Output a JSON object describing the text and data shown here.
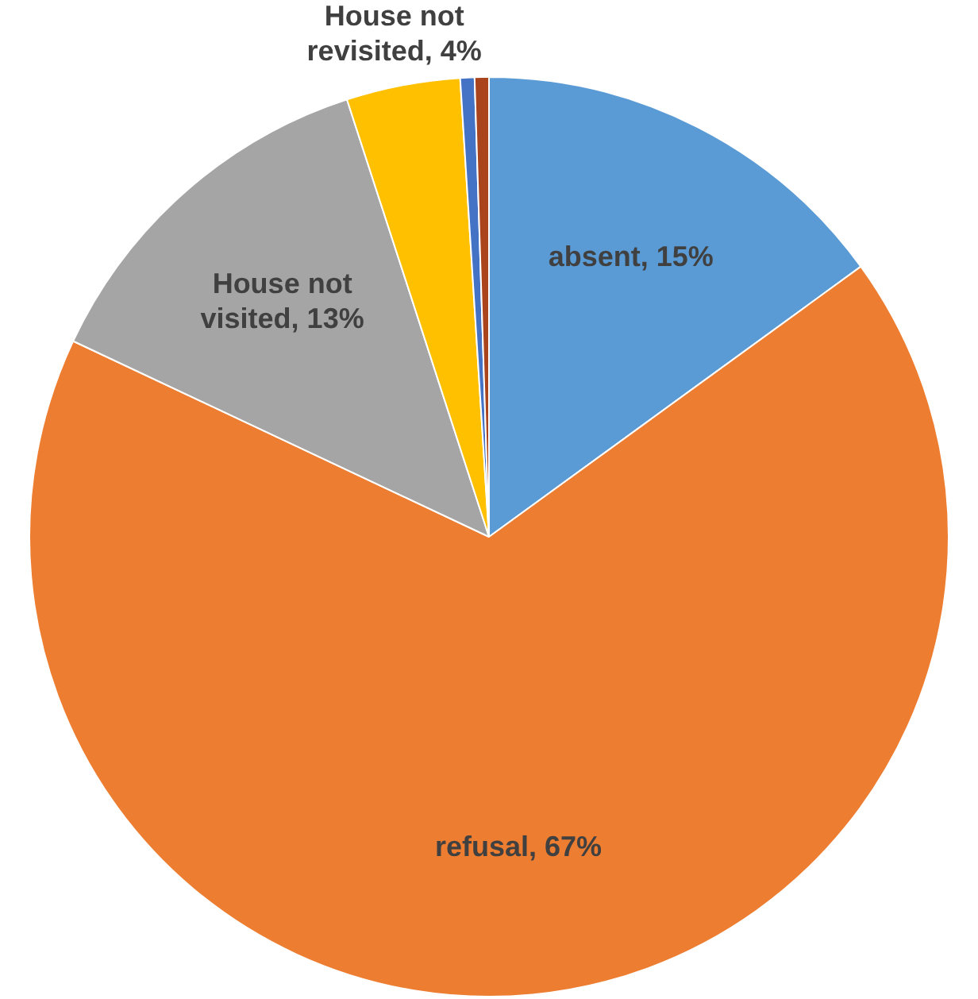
{
  "chart_data": {
    "type": "pie",
    "categories": [
      "absent",
      "refusal",
      "House not visited",
      "House not revisited",
      null,
      null
    ],
    "values": [
      15,
      67,
      13,
      4,
      0.5,
      0.5
    ],
    "value_labels": [
      "15%",
      "67%",
      "13%",
      "4%",
      null,
      null
    ],
    "colors": [
      "#5b9bd5",
      "#ed7d31",
      "#a5a5a5",
      "#ffc000",
      "#4472c4",
      "#a9441d"
    ],
    "legend": false
  }
}
